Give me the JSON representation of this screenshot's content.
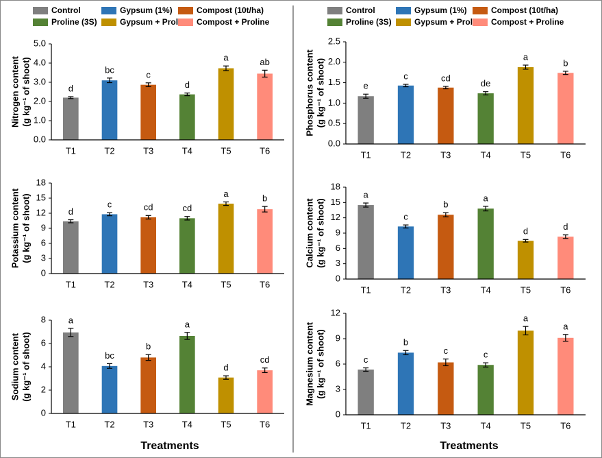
{
  "legend": [
    {
      "name": "Control",
      "color": "#7f7f7f"
    },
    {
      "name": "Gypsum (1%)",
      "color": "#2e75b6"
    },
    {
      "name": "Compost (10t/ha)",
      "color": "#c55a11"
    },
    {
      "name": "Proline (3S)",
      "color": "#548235"
    },
    {
      "name": "Gypsum + Proline",
      "color": "#bf9000"
    },
    {
      "name": "Compost + Proline",
      "color": "#ff8b7a"
    }
  ],
  "xlabel": "Treatments",
  "chart_data": [
    {
      "type": "bar",
      "ylabel": [
        "Nitrogen content",
        "(g kg⁻¹ of shoot)"
      ],
      "categories": [
        "T1",
        "T2",
        "T3",
        "T4",
        "T5",
        "T6"
      ],
      "values": [
        2.2,
        3.1,
        2.87,
        2.37,
        3.73,
        3.45
      ],
      "errors": [
        0.05,
        0.12,
        0.1,
        0.07,
        0.12,
        0.18
      ],
      "letters": [
        "d",
        "bc",
        "c",
        "d",
        "a",
        "ab"
      ],
      "ylim": [
        0,
        5
      ],
      "yticks": [
        {
          "value": 0,
          "label": "0.0"
        },
        {
          "value": 1,
          "label": "1.0"
        },
        {
          "value": 2,
          "label": "2.0"
        },
        {
          "value": 3,
          "label": "3.0"
        },
        {
          "value": 4,
          "label": "4.0"
        },
        {
          "value": 5,
          "label": "5.0"
        }
      ]
    },
    {
      "type": "bar",
      "ylabel": [
        "Phosphorus content",
        "(g kg⁻¹ of shoot)"
      ],
      "categories": [
        "T1",
        "T2",
        "T3",
        "T4",
        "T5",
        "T6"
      ],
      "values": [
        1.17,
        1.43,
        1.38,
        1.24,
        1.88,
        1.74
      ],
      "errors": [
        0.05,
        0.03,
        0.03,
        0.04,
        0.05,
        0.04
      ],
      "letters": [
        "e",
        "c",
        "cd",
        "de",
        "a",
        "b"
      ],
      "ylim": [
        0,
        2.5
      ],
      "yticks": [
        {
          "value": 0,
          "label": "0.0"
        },
        {
          "value": 0.5,
          "label": "0.5"
        },
        {
          "value": 1,
          "label": "1.0"
        },
        {
          "value": 1.5,
          "label": "1.5"
        },
        {
          "value": 2,
          "label": "2.0"
        },
        {
          "value": 2.5,
          "label": "2.5"
        }
      ]
    },
    {
      "type": "bar",
      "ylabel": [
        "Potassium content",
        "(g kg⁻¹ of shoot)"
      ],
      "categories": [
        "T1",
        "T2",
        "T3",
        "T4",
        "T5",
        "T6"
      ],
      "values": [
        10.4,
        11.8,
        11.2,
        11.0,
        13.9,
        12.8
      ],
      "errors": [
        0.3,
        0.3,
        0.35,
        0.35,
        0.35,
        0.55
      ],
      "letters": [
        "d",
        "c",
        "cd",
        "cd",
        "a",
        "b"
      ],
      "ylim": [
        0,
        18
      ],
      "yticks": [
        0,
        3,
        6,
        9,
        12,
        15,
        18
      ]
    },
    {
      "type": "bar",
      "ylabel": [
        "Calcium content",
        "(g kg⁻¹ of shoot)"
      ],
      "categories": [
        "T1",
        "T2",
        "T3",
        "T4",
        "T5",
        "T6"
      ],
      "values": [
        14.5,
        10.3,
        12.6,
        13.8,
        7.5,
        8.3
      ],
      "errors": [
        0.4,
        0.3,
        0.4,
        0.45,
        0.25,
        0.35
      ],
      "letters": [
        "a",
        "c",
        "b",
        "a",
        "d",
        "d"
      ],
      "ylim": [
        0,
        18
      ],
      "yticks": [
        0,
        3,
        6,
        9,
        12,
        15,
        18
      ]
    },
    {
      "type": "bar",
      "ylabel": [
        "Sodium content",
        "(g kg⁻¹ of shoot)"
      ],
      "categories": [
        "T1",
        "T2",
        "T3",
        "T4",
        "T5",
        "T6"
      ],
      "values": [
        6.95,
        4.07,
        4.8,
        6.65,
        3.08,
        3.7
      ],
      "errors": [
        0.35,
        0.2,
        0.25,
        0.3,
        0.15,
        0.2
      ],
      "letters": [
        "a",
        "bc",
        "b",
        "a",
        "d",
        "cd"
      ],
      "ylim": [
        0,
        8
      ],
      "yticks": [
        0,
        2,
        4,
        6,
        8
      ]
    },
    {
      "type": "bar",
      "ylabel": [
        "Magnesium content",
        "(g kg⁻¹ of shoot)"
      ],
      "categories": [
        "T1",
        "T2",
        "T3",
        "T4",
        "T5",
        "T6"
      ],
      "values": [
        5.35,
        7.35,
        6.2,
        5.9,
        9.95,
        9.1
      ],
      "errors": [
        0.2,
        0.25,
        0.4,
        0.25,
        0.5,
        0.4
      ],
      "letters": [
        "c",
        "b",
        "c",
        "c",
        "a",
        "a"
      ],
      "ylim": [
        0,
        12
      ],
      "yticks": [
        0,
        3,
        6,
        9,
        12
      ]
    }
  ]
}
